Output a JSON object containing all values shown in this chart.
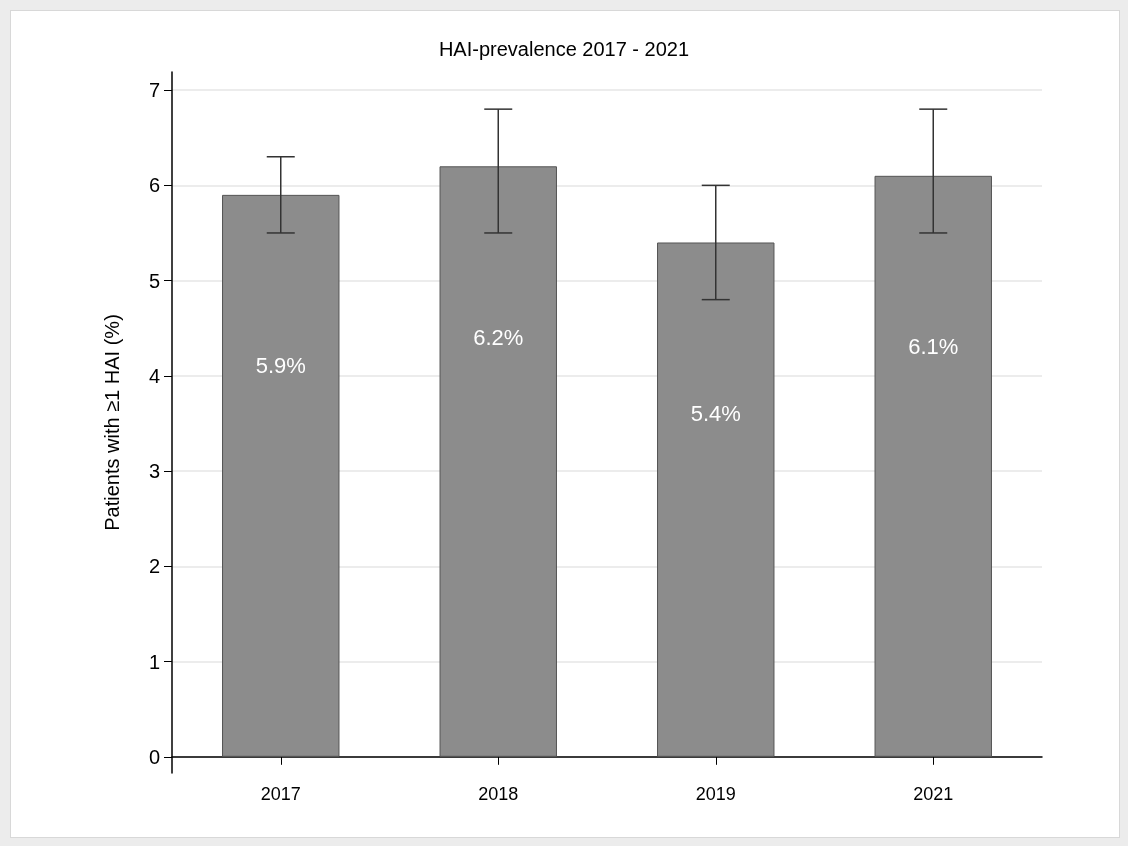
{
  "chart_data": {
    "type": "bar",
    "title": "HAI-prevalence 2017 - 2021",
    "ylabel": "Patients with ≥1 HAI (%)",
    "categories": [
      "2017",
      "2018",
      "2019",
      "2021"
    ],
    "values": [
      5.9,
      6.2,
      5.4,
      6.1
    ],
    "errors": [
      [
        5.5,
        6.3
      ],
      [
        5.5,
        6.8
      ],
      [
        4.8,
        6.0
      ],
      [
        5.5,
        6.8
      ]
    ],
    "value_labels": [
      "5.9%",
      "6.2%",
      "5.4%",
      "6.1%"
    ],
    "color": "#8c8c8c",
    "ylim": [
      -0.17,
      7.19
    ],
    "yticks": [
      0,
      1,
      2,
      3,
      4,
      5,
      6,
      7
    ],
    "grid": "y"
  }
}
